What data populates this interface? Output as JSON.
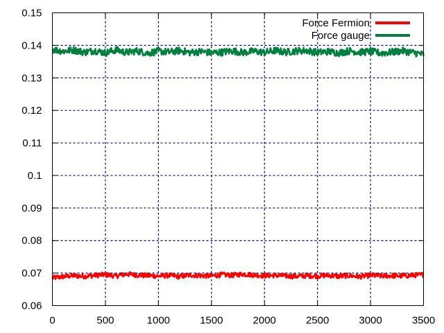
{
  "chart_data": {
    "type": "line",
    "title": "",
    "xlabel": "",
    "ylabel": "",
    "xlim": [
      0,
      3500
    ],
    "ylim": [
      0.06,
      0.15
    ],
    "x_ticks": [
      0,
      500,
      1000,
      1500,
      2000,
      2500,
      3000,
      3500
    ],
    "x_tick_labels": [
      "0",
      "500",
      "1000",
      "1500",
      "2000",
      "2500",
      "3000",
      "3500"
    ],
    "y_ticks": [
      0.06,
      0.07,
      0.08,
      0.09,
      0.1,
      0.11,
      0.12,
      0.13,
      0.14,
      0.15
    ],
    "y_tick_labels": [
      "0.06",
      "0.07",
      "0.08",
      "0.09",
      "0.1",
      "0.11",
      "0.12",
      "0.13",
      "0.14",
      "0.15"
    ],
    "grid": true,
    "grid_color": "#00008b",
    "legend_position": "top-right",
    "series": [
      {
        "name": "Force Fermion",
        "color": "#ff0000",
        "x": [
          0,
          100,
          200,
          300,
          400,
          500,
          600,
          700,
          800,
          900,
          1000,
          1100,
          1200,
          1300,
          1400,
          1500,
          1600,
          1700,
          1800,
          1900,
          2000,
          2100,
          2200,
          2300,
          2400,
          2500,
          2600,
          2700,
          2800,
          2900,
          3000,
          3100,
          3200,
          3300,
          3400,
          3500
        ],
        "y": [
          0.0685,
          0.0689,
          0.0692,
          0.069,
          0.0693,
          0.0695,
          0.0691,
          0.0697,
          0.0694,
          0.0692,
          0.0691,
          0.0693,
          0.0689,
          0.0694,
          0.0692,
          0.0691,
          0.0695,
          0.0693,
          0.0697,
          0.0694,
          0.0692,
          0.0693,
          0.0691,
          0.069,
          0.0692,
          0.0691,
          0.0693,
          0.069,
          0.0692,
          0.0689,
          0.0693,
          0.0691,
          0.0692,
          0.0691,
          0.0693,
          0.0695
        ]
      },
      {
        "name": "Force gauge",
        "color": "#008040",
        "x": [
          0,
          100,
          200,
          300,
          400,
          500,
          600,
          700,
          800,
          900,
          1000,
          1100,
          1200,
          1300,
          1400,
          1500,
          1600,
          1700,
          1800,
          1900,
          2000,
          2100,
          2200,
          2300,
          2400,
          2500,
          2600,
          2700,
          2800,
          2900,
          3000,
          3100,
          3200,
          3300,
          3400,
          3500
        ],
        "y": [
          0.1388,
          0.1382,
          0.1386,
          0.1379,
          0.1384,
          0.1377,
          0.1386,
          0.1378,
          0.1383,
          0.1376,
          0.1382,
          0.1379,
          0.1384,
          0.1378,
          0.1381,
          0.1377,
          0.1379,
          0.1383,
          0.1378,
          0.1382,
          0.1378,
          0.1384,
          0.1379,
          0.1383,
          0.1384,
          0.1378,
          0.1381,
          0.1377,
          0.1383,
          0.1379,
          0.1381,
          0.1376,
          0.1379,
          0.1383,
          0.1378,
          0.1372
        ]
      }
    ]
  }
}
